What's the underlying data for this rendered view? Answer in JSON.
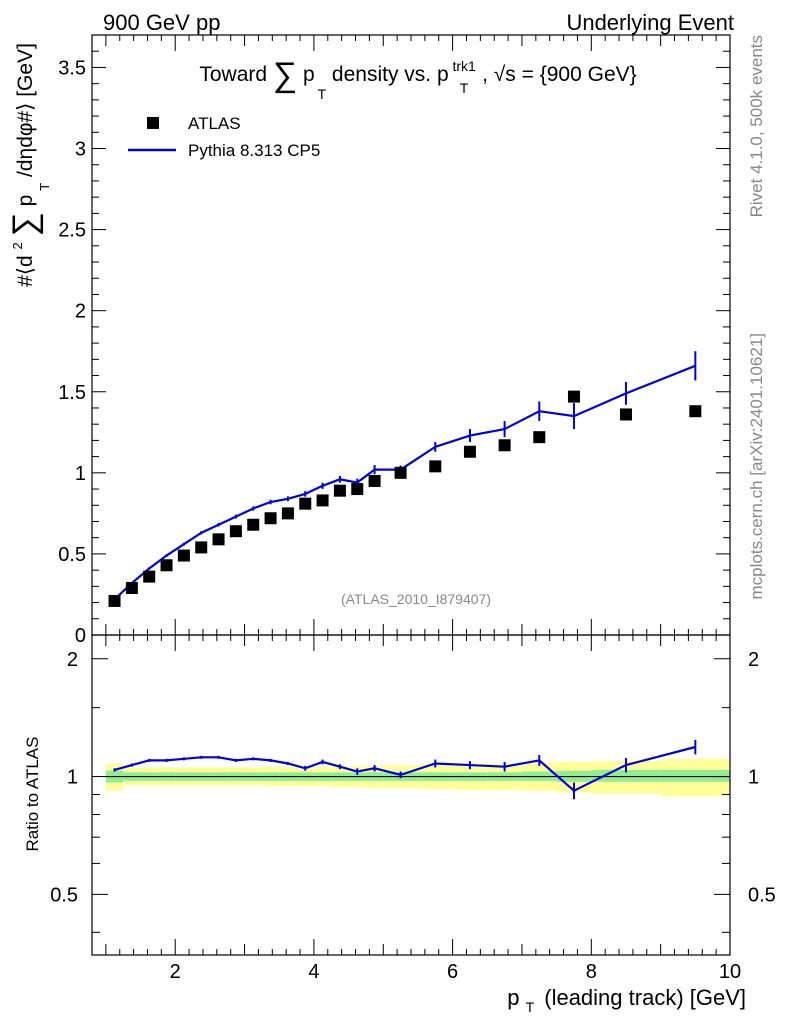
{
  "header": {
    "left": "900 GeV pp",
    "right": "Underlying Event"
  },
  "side_text": {
    "rivet": "Rivet 4.1.0,  500k events",
    "mcplots": "mcplots.cern.ch [arXiv:2401.10621]"
  },
  "colors": {
    "mc": "#0000e0",
    "data": "#000000",
    "band_inner": "#90ee90",
    "band_outer": "#ffff99"
  },
  "chart_data": [
    {
      "type": "scatter",
      "title_parts": {
        "pre": "Toward",
        "sum": "∑",
        "p": "p",
        "sub": "T",
        "mid": "density vs. p",
        "sup": "trk1",
        "sub2": "T",
        "post": ", √s = {900 GeV}"
      },
      "ylabel_parts": {
        "a": "#⟨d",
        "b": "2",
        "sum": "∑",
        "c": "p",
        "d": "T",
        "e": "/dηdφ#⟩ [GeV]"
      },
      "watermark": "(ATLAS_2010_I879407)",
      "xlim": [
        0.8,
        10
      ],
      "ylim": [
        0,
        3.7
      ],
      "yticks": [
        0,
        0.5,
        1,
        1.5,
        2,
        2.5,
        3,
        3.5
      ],
      "ytick_labels": [
        "0",
        "0.5",
        "1",
        "1.5",
        "2",
        "2.5",
        "3",
        "3.5"
      ],
      "legend": {
        "position": "top-left",
        "entries": [
          "ATLAS",
          "Pythia 8.313 CP5"
        ]
      },
      "series": [
        {
          "name": "ATLAS",
          "marker": "square",
          "x": [
            1.125,
            1.375,
            1.625,
            1.875,
            2.125,
            2.375,
            2.625,
            2.875,
            3.125,
            3.375,
            3.625,
            3.875,
            4.125,
            4.375,
            4.625,
            4.875,
            5.25,
            5.75,
            6.25,
            6.75,
            7.25,
            7.75,
            8.5,
            9.5
          ],
          "y": [
            0.21,
            0.29,
            0.36,
            0.43,
            0.49,
            0.54,
            0.59,
            0.64,
            0.68,
            0.72,
            0.75,
            0.81,
            0.83,
            0.89,
            0.9,
            0.95,
            1.0,
            1.04,
            1.13,
            1.17,
            1.22,
            1.47,
            1.36,
            1.38
          ]
        },
        {
          "name": "Pythia 8.313 CP5",
          "marker": "line",
          "x": [
            1.125,
            1.375,
            1.625,
            1.875,
            2.125,
            2.375,
            2.625,
            2.875,
            3.125,
            3.375,
            3.625,
            3.875,
            4.125,
            4.375,
            4.625,
            4.875,
            5.25,
            5.75,
            6.25,
            6.75,
            7.25,
            7.75,
            8.5,
            9.5
          ],
          "y": [
            0.22,
            0.32,
            0.41,
            0.49,
            0.56,
            0.63,
            0.68,
            0.73,
            0.78,
            0.82,
            0.84,
            0.87,
            0.92,
            0.96,
            0.94,
            1.02,
            1.02,
            1.16,
            1.23,
            1.27,
            1.38,
            1.35,
            1.49,
            1.66
          ],
          "yerr": [
            0.005,
            0.006,
            0.007,
            0.008,
            0.009,
            0.01,
            0.011,
            0.012,
            0.013,
            0.014,
            0.015,
            0.017,
            0.019,
            0.021,
            0.024,
            0.028,
            0.025,
            0.03,
            0.04,
            0.05,
            0.06,
            0.08,
            0.07,
            0.09
          ]
        }
      ]
    },
    {
      "type": "line",
      "ylabel": "Ratio to ATLAS",
      "xlabel": "p",
      "xlabel_sub": "T",
      "xlabel_rest": "(leading track) [GeV]",
      "xlim": [
        0.8,
        10
      ],
      "ylim": [
        0.35,
        2.3
      ],
      "xticks": [
        2,
        4,
        6,
        8,
        10
      ],
      "xtick_labels": [
        "2",
        "4",
        "6",
        "8",
        "10"
      ],
      "yticks": [
        0.5,
        1,
        2
      ],
      "ytick_labels": [
        "0.5",
        "1",
        "2"
      ],
      "ratio_series": {
        "name": "Pythia 8.313 CP5",
        "x": [
          1.125,
          1.375,
          1.625,
          1.875,
          2.125,
          2.375,
          2.625,
          2.875,
          3.125,
          3.375,
          3.625,
          3.875,
          4.125,
          4.375,
          4.625,
          4.875,
          5.25,
          5.75,
          6.25,
          6.75,
          7.25,
          7.75,
          8.5,
          9.5
        ],
        "y": [
          1.04,
          1.07,
          1.1,
          1.1,
          1.11,
          1.12,
          1.12,
          1.1,
          1.11,
          1.1,
          1.08,
          1.05,
          1.09,
          1.06,
          1.03,
          1.05,
          1.01,
          1.08,
          1.07,
          1.06,
          1.1,
          0.92,
          1.07,
          1.19
        ],
        "yerr": [
          0.01,
          0.01,
          0.01,
          0.01,
          0.01,
          0.01,
          0.01,
          0.01,
          0.01,
          0.01,
          0.01,
          0.015,
          0.015,
          0.015,
          0.02,
          0.02,
          0.02,
          0.025,
          0.025,
          0.03,
          0.035,
          0.045,
          0.045,
          0.05
        ]
      },
      "bands": {
        "x_edges": [
          1.0,
          1.25,
          1.5,
          1.75,
          2.0,
          2.25,
          2.5,
          2.75,
          3.0,
          3.25,
          3.5,
          3.75,
          4.0,
          4.25,
          4.5,
          4.75,
          5.0,
          5.5,
          6.0,
          6.5,
          7.0,
          7.5,
          8.0,
          9.0,
          10.0
        ],
        "inner_lo": [
          0.965,
          0.975,
          0.975,
          0.975,
          0.975,
          0.975,
          0.975,
          0.975,
          0.975,
          0.975,
          0.975,
          0.975,
          0.975,
          0.975,
          0.975,
          0.975,
          0.975,
          0.975,
          0.975,
          0.975,
          0.975,
          0.97,
          0.97,
          0.97
        ],
        "inner_hi": [
          1.035,
          1.025,
          1.025,
          1.025,
          1.025,
          1.025,
          1.025,
          1.025,
          1.025,
          1.025,
          1.025,
          1.025,
          1.025,
          1.025,
          1.025,
          1.025,
          1.025,
          1.025,
          1.025,
          1.025,
          1.03,
          1.035,
          1.04,
          1.04
        ],
        "outer_lo": [
          0.92,
          0.95,
          0.95,
          0.95,
          0.95,
          0.95,
          0.95,
          0.95,
          0.95,
          0.945,
          0.945,
          0.945,
          0.945,
          0.94,
          0.94,
          0.935,
          0.935,
          0.93,
          0.925,
          0.925,
          0.92,
          0.91,
          0.905,
          0.89
        ],
        "outer_hi": [
          1.08,
          1.055,
          1.055,
          1.055,
          1.055,
          1.055,
          1.055,
          1.055,
          1.055,
          1.06,
          1.06,
          1.06,
          1.06,
          1.065,
          1.065,
          1.07,
          1.07,
          1.075,
          1.08,
          1.08,
          1.085,
          1.09,
          1.095,
          1.11
        ]
      }
    }
  ]
}
